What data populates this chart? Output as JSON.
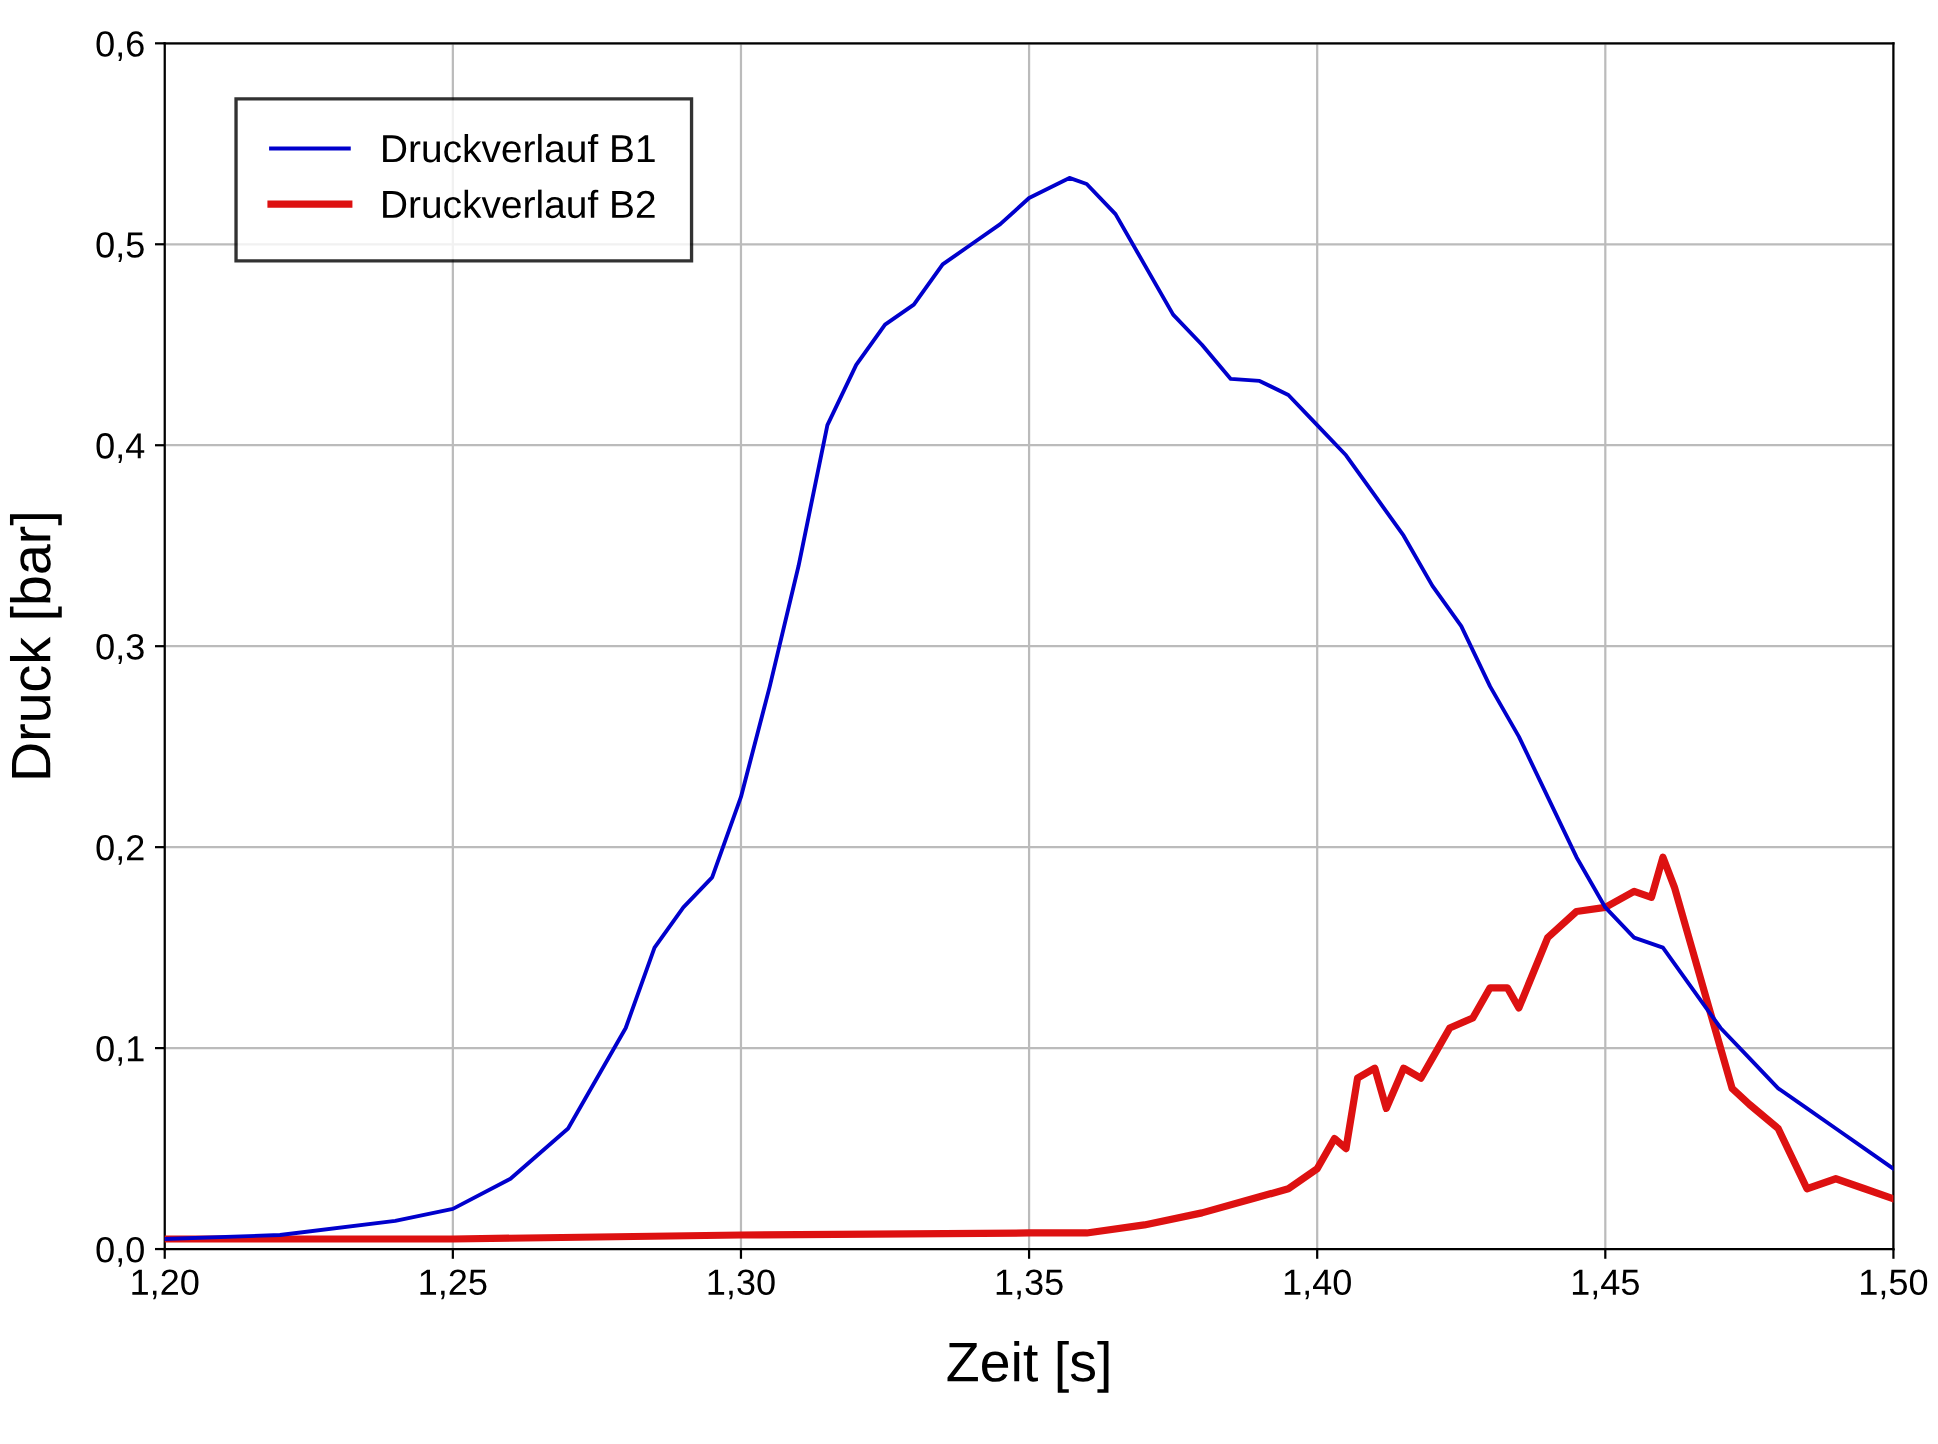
{
  "chart_data": {
    "type": "line",
    "xlabel": "Zeit [s]",
    "ylabel": "Druck [bar]",
    "xlim": [
      1.2,
      1.5
    ],
    "ylim": [
      0,
      0.6
    ],
    "xticks": [
      {
        "value": 1.2,
        "label": "1,20"
      },
      {
        "value": 1.25,
        "label": "1,25"
      },
      {
        "value": 1.3,
        "label": "1,30"
      },
      {
        "value": 1.35,
        "label": "1,35"
      },
      {
        "value": 1.4,
        "label": "1,40"
      },
      {
        "value": 1.45,
        "label": "1,45"
      },
      {
        "value": 1.5,
        "label": "1,50"
      }
    ],
    "yticks": [
      {
        "value": 0,
        "label": "0,0"
      },
      {
        "value": 0.1,
        "label": "0,1"
      },
      {
        "value": 0.2,
        "label": "0,2"
      },
      {
        "value": 0.3,
        "label": "0,3"
      },
      {
        "value": 0.4,
        "label": "0,4"
      },
      {
        "value": 0.5,
        "label": "0,5"
      },
      {
        "value": 0.6,
        "label": "0,6"
      }
    ],
    "grid": true,
    "legend": "top left",
    "marker": "none",
    "line_style": "solid",
    "series": [
      {
        "name": "Druckverlauf B1",
        "color": "#0000cc",
        "x": [
          1.2,
          1.22,
          1.24,
          1.25,
          1.26,
          1.27,
          1.28,
          1.285,
          1.29,
          1.295,
          1.3,
          1.305,
          1.31,
          1.315,
          1.32,
          1.325,
          1.33,
          1.335,
          1.34,
          1.345,
          1.35,
          1.357,
          1.36,
          1.365,
          1.37,
          1.375,
          1.38,
          1.385,
          1.39,
          1.395,
          1.4,
          1.405,
          1.41,
          1.415,
          1.42,
          1.425,
          1.43,
          1.435,
          1.44,
          1.445,
          1.45,
          1.455,
          1.46,
          1.465,
          1.47,
          1.475,
          1.48,
          1.485,
          1.49,
          1.495,
          1.5
        ],
        "values": [
          0.005,
          0.007,
          0.014,
          0.02,
          0.035,
          0.06,
          0.11,
          0.15,
          0.17,
          0.185,
          0.225,
          0.28,
          0.34,
          0.41,
          0.44,
          0.46,
          0.47,
          0.49,
          0.5,
          0.51,
          0.523,
          0.533,
          0.53,
          0.515,
          0.49,
          0.465,
          0.45,
          0.433,
          0.432,
          0.425,
          0.41,
          0.395,
          0.375,
          0.355,
          0.33,
          0.31,
          0.28,
          0.255,
          0.225,
          0.195,
          0.17,
          0.155,
          0.15,
          0.13,
          0.11,
          0.095,
          0.08,
          0.07,
          0.06,
          0.05,
          0.04
        ]
      },
      {
        "name": "Druckverlauf B2",
        "color": "#dd1111",
        "x": [
          1.2,
          1.25,
          1.3,
          1.35,
          1.36,
          1.37,
          1.38,
          1.39,
          1.395,
          1.4,
          1.403,
          1.405,
          1.407,
          1.41,
          1.412,
          1.415,
          1.418,
          1.42,
          1.423,
          1.427,
          1.43,
          1.433,
          1.435,
          1.44,
          1.445,
          1.45,
          1.455,
          1.458,
          1.46,
          1.462,
          1.465,
          1.468,
          1.472,
          1.475,
          1.48,
          1.485,
          1.49,
          1.495,
          1.5
        ],
        "values": [
          0.005,
          0.005,
          0.007,
          0.008,
          0.008,
          0.012,
          0.018,
          0.026,
          0.03,
          0.04,
          0.055,
          0.05,
          0.085,
          0.09,
          0.07,
          0.09,
          0.085,
          0.095,
          0.11,
          0.115,
          0.13,
          0.13,
          0.12,
          0.155,
          0.168,
          0.17,
          0.178,
          0.175,
          0.195,
          0.18,
          0.15,
          0.12,
          0.08,
          0.072,
          0.06,
          0.03,
          0.035,
          0.03,
          0.025
        ]
      }
    ]
  }
}
